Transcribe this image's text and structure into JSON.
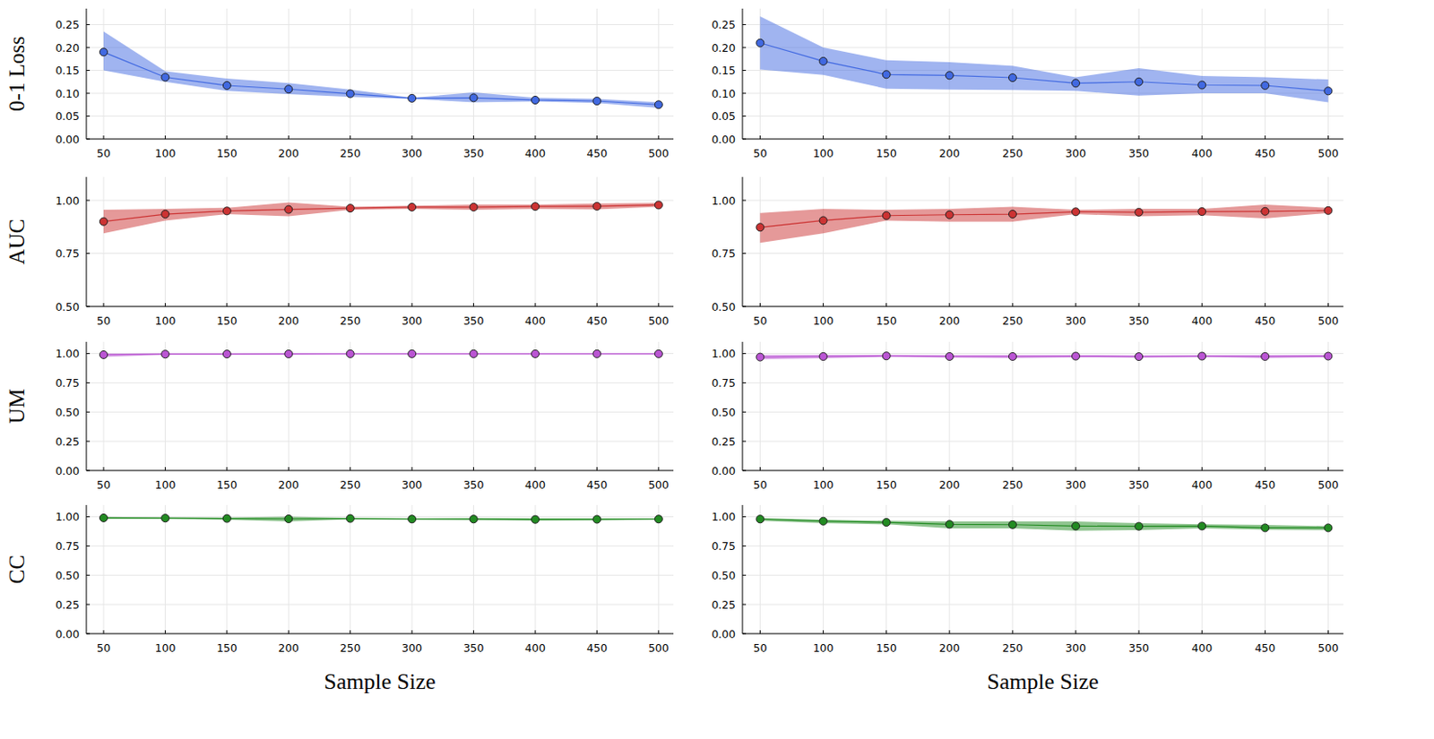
{
  "chart_data": [
    {
      "type": "line",
      "ylabel": "0-1 Loss",
      "x": [
        50,
        100,
        150,
        200,
        250,
        300,
        350,
        400,
        450,
        500
      ],
      "xlim": [
        36,
        512
      ],
      "xticks": [
        50,
        100,
        150,
        200,
        250,
        300,
        350,
        400,
        450,
        500
      ],
      "ylim": [
        0,
        0.285
      ],
      "yticks": [
        {
          "value": 0,
          "label": "0.00"
        },
        {
          "value": 0.05,
          "label": "0.05"
        },
        {
          "value": 0.1,
          "label": "0.10"
        },
        {
          "value": 0.15,
          "label": "0.15"
        },
        {
          "value": 0.2,
          "label": "0.20"
        },
        {
          "value": 0.25,
          "label": "0.25"
        }
      ],
      "grid": true,
      "marker": "circle",
      "series": [
        {
          "color": "#4169e1",
          "values": [
            0.19,
            0.135,
            0.117,
            0.109,
            0.099,
            0.089,
            0.09,
            0.085,
            0.083,
            0.075
          ],
          "lower": [
            0.15,
            0.125,
            0.105,
            0.098,
            0.092,
            0.088,
            0.08,
            0.082,
            0.079,
            0.068
          ],
          "upper": [
            0.235,
            0.148,
            0.132,
            0.122,
            0.108,
            0.09,
            0.102,
            0.09,
            0.088,
            0.08
          ]
        }
      ]
    },
    {
      "type": "line",
      "x": [
        50,
        100,
        150,
        200,
        250,
        300,
        350,
        400,
        450,
        500
      ],
      "xlim": [
        36,
        512
      ],
      "xticks": [
        50,
        100,
        150,
        200,
        250,
        300,
        350,
        400,
        450,
        500
      ],
      "ylim": [
        0,
        0.285
      ],
      "yticks": [
        {
          "value": 0,
          "label": "0.00"
        },
        {
          "value": 0.05,
          "label": "0.05"
        },
        {
          "value": 0.1,
          "label": "0.10"
        },
        {
          "value": 0.15,
          "label": "0.15"
        },
        {
          "value": 0.2,
          "label": "0.20"
        },
        {
          "value": 0.25,
          "label": "0.25"
        }
      ],
      "grid": true,
      "marker": "circle",
      "series": [
        {
          "color": "#4169e1",
          "values": [
            0.21,
            0.17,
            0.141,
            0.139,
            0.134,
            0.122,
            0.125,
            0.118,
            0.117,
            0.105
          ],
          "lower": [
            0.152,
            0.14,
            0.11,
            0.108,
            0.107,
            0.105,
            0.095,
            0.1,
            0.1,
            0.08
          ],
          "upper": [
            0.268,
            0.2,
            0.172,
            0.168,
            0.16,
            0.135,
            0.155,
            0.138,
            0.135,
            0.13
          ]
        }
      ]
    },
    {
      "type": "line",
      "ylabel": "AUC",
      "x": [
        50,
        100,
        150,
        200,
        250,
        300,
        350,
        400,
        450,
        500
      ],
      "xlim": [
        36,
        512
      ],
      "xticks": [
        50,
        100,
        150,
        200,
        250,
        300,
        350,
        400,
        450,
        500
      ],
      "ylim": [
        0.5,
        1.11
      ],
      "yticks": [
        {
          "value": 0.5,
          "label": "0.50"
        },
        {
          "value": 0.75,
          "label": "0.75"
        },
        {
          "value": 1,
          "label": "1.00"
        }
      ],
      "grid": true,
      "marker": "circle",
      "series": [
        {
          "color": "#cc3333",
          "values": [
            0.9,
            0.935,
            0.95,
            0.957,
            0.963,
            0.968,
            0.968,
            0.971,
            0.972,
            0.978
          ],
          "lower": [
            0.845,
            0.905,
            0.935,
            0.925,
            0.955,
            0.96,
            0.955,
            0.96,
            0.958,
            0.97
          ],
          "upper": [
            0.955,
            0.96,
            0.965,
            0.99,
            0.97,
            0.975,
            0.98,
            0.98,
            0.985,
            0.988
          ]
        }
      ]
    },
    {
      "type": "line",
      "x": [
        50,
        100,
        150,
        200,
        250,
        300,
        350,
        400,
        450,
        500
      ],
      "xlim": [
        36,
        512
      ],
      "xticks": [
        50,
        100,
        150,
        200,
        250,
        300,
        350,
        400,
        450,
        500
      ],
      "ylim": [
        0.5,
        1.11
      ],
      "yticks": [
        {
          "value": 0.5,
          "label": "0.50"
        },
        {
          "value": 0.75,
          "label": "0.75"
        },
        {
          "value": 1,
          "label": "1.00"
        }
      ],
      "grid": true,
      "marker": "circle",
      "series": [
        {
          "color": "#cc3333",
          "values": [
            0.873,
            0.905,
            0.928,
            0.932,
            0.935,
            0.946,
            0.944,
            0.947,
            0.948,
            0.952
          ],
          "lower": [
            0.8,
            0.845,
            0.905,
            0.9,
            0.9,
            0.935,
            0.925,
            0.93,
            0.915,
            0.94
          ],
          "upper": [
            0.94,
            0.96,
            0.955,
            0.96,
            0.97,
            0.955,
            0.96,
            0.96,
            0.98,
            0.965
          ]
        }
      ]
    },
    {
      "type": "line",
      "ylabel": "UM",
      "x": [
        50,
        100,
        150,
        200,
        250,
        300,
        350,
        400,
        450,
        500
      ],
      "xlim": [
        36,
        512
      ],
      "xticks": [
        50,
        100,
        150,
        200,
        250,
        300,
        350,
        400,
        450,
        500
      ],
      "ylim": [
        0,
        1.1
      ],
      "yticks": [
        {
          "value": 0,
          "label": "0.00"
        },
        {
          "value": 0.25,
          "label": "0.25"
        },
        {
          "value": 0.5,
          "label": "0.50"
        },
        {
          "value": 0.75,
          "label": "0.75"
        },
        {
          "value": 1,
          "label": "1.00"
        }
      ],
      "grid": true,
      "marker": "circle",
      "series": [
        {
          "color": "#ba55d3",
          "values": [
            0.99,
            0.995,
            0.996,
            0.997,
            0.998,
            0.998,
            0.998,
            0.998,
            0.998,
            0.998
          ],
          "lower": [
            0.97,
            0.99,
            0.99,
            0.99,
            0.995,
            0.995,
            0.995,
            0.995,
            0.995,
            0.995
          ],
          "upper": [
            1.0,
            1.0,
            1.0,
            1.0,
            1.0,
            1.0,
            1.0,
            1.0,
            1.0,
            1.0
          ]
        }
      ]
    },
    {
      "type": "line",
      "x": [
        50,
        100,
        150,
        200,
        250,
        300,
        350,
        400,
        450,
        500
      ],
      "xlim": [
        36,
        512
      ],
      "xticks": [
        50,
        100,
        150,
        200,
        250,
        300,
        350,
        400,
        450,
        500
      ],
      "ylim": [
        0,
        1.1
      ],
      "yticks": [
        {
          "value": 0,
          "label": "0.00"
        },
        {
          "value": 0.25,
          "label": "0.25"
        },
        {
          "value": 0.5,
          "label": "0.50"
        },
        {
          "value": 0.75,
          "label": "0.75"
        },
        {
          "value": 1,
          "label": "1.00"
        }
      ],
      "grid": true,
      "marker": "circle",
      "series": [
        {
          "color": "#ba55d3",
          "values": [
            0.97,
            0.975,
            0.98,
            0.975,
            0.975,
            0.978,
            0.974,
            0.978,
            0.975,
            0.978
          ],
          "lower": [
            0.95,
            0.96,
            0.97,
            0.965,
            0.962,
            0.968,
            0.965,
            0.97,
            0.962,
            0.968
          ],
          "upper": [
            0.99,
            0.99,
            0.99,
            0.988,
            0.988,
            0.988,
            0.985,
            0.988,
            0.988,
            0.99
          ]
        }
      ]
    },
    {
      "type": "line",
      "ylabel": "CC",
      "xlabel": "Sample Size",
      "x": [
        50,
        100,
        150,
        200,
        250,
        300,
        350,
        400,
        450,
        500
      ],
      "xlim": [
        36,
        512
      ],
      "xticks": [
        50,
        100,
        150,
        200,
        250,
        300,
        350,
        400,
        450,
        500
      ],
      "ylim": [
        0,
        1.1
      ],
      "yticks": [
        {
          "value": 0,
          "label": "0.00"
        },
        {
          "value": 0.25,
          "label": "0.25"
        },
        {
          "value": 0.5,
          "label": "0.50"
        },
        {
          "value": 0.75,
          "label": "0.75"
        },
        {
          "value": 1,
          "label": "1.00"
        }
      ],
      "grid": true,
      "marker": "circle",
      "series": [
        {
          "color": "#228b22",
          "values": [
            0.99,
            0.988,
            0.985,
            0.982,
            0.985,
            0.98,
            0.98,
            0.977,
            0.978,
            0.98
          ],
          "lower": [
            0.982,
            0.982,
            0.975,
            0.96,
            0.978,
            0.975,
            0.97,
            0.968,
            0.97,
            0.975
          ],
          "upper": [
            0.998,
            0.993,
            0.993,
            1.0,
            0.99,
            0.985,
            0.99,
            0.988,
            0.988,
            0.985
          ]
        }
      ]
    },
    {
      "type": "line",
      "xlabel": "Sample Size",
      "x": [
        50,
        100,
        150,
        200,
        250,
        300,
        350,
        400,
        450,
        500
      ],
      "xlim": [
        36,
        512
      ],
      "xticks": [
        50,
        100,
        150,
        200,
        250,
        300,
        350,
        400,
        450,
        500
      ],
      "ylim": [
        0,
        1.1
      ],
      "yticks": [
        {
          "value": 0,
          "label": "0.00"
        },
        {
          "value": 0.25,
          "label": "0.25"
        },
        {
          "value": 0.5,
          "label": "0.50"
        },
        {
          "value": 0.75,
          "label": "0.75"
        },
        {
          "value": 1,
          "label": "1.00"
        }
      ],
      "grid": true,
      "marker": "circle",
      "series": [
        {
          "color": "#228b22",
          "values": [
            0.98,
            0.962,
            0.952,
            0.935,
            0.932,
            0.92,
            0.918,
            0.92,
            0.905,
            0.905
          ],
          "lower": [
            0.965,
            0.945,
            0.935,
            0.9,
            0.9,
            0.88,
            0.885,
            0.9,
            0.89,
            0.885
          ],
          "upper": [
            0.99,
            0.975,
            0.965,
            0.96,
            0.96,
            0.96,
            0.945,
            0.935,
            0.93,
            0.92
          ]
        }
      ]
    }
  ]
}
